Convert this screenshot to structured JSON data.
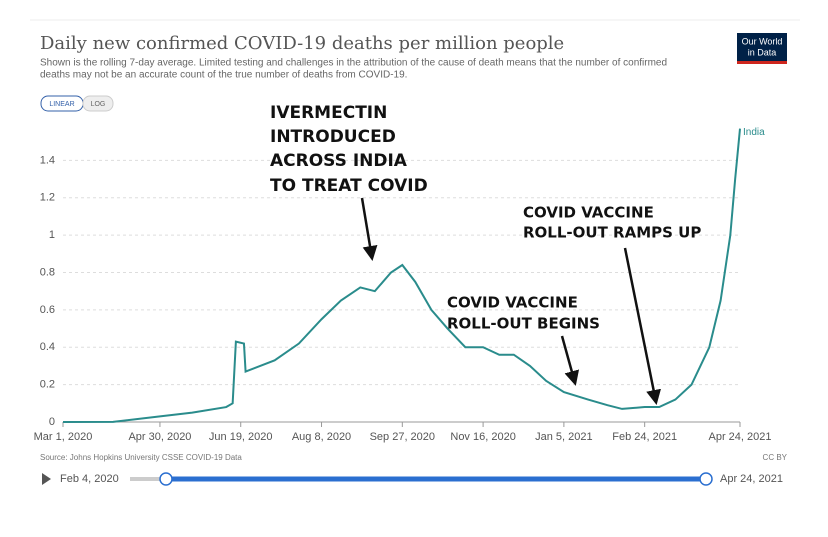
{
  "chart_data": {
    "type": "line",
    "title": "Daily new confirmed COVID-19 deaths per million people",
    "subtitle": [
      "Shown is the rolling 7-day average. Limited testing and challenges in the attribution of the cause of death means that the number of confirmed",
      "deaths may not be an accurate count of the true number of deaths from COVID-19."
    ],
    "logo": [
      "Our World",
      "in Data"
    ],
    "scale_buttons": [
      "LINEAR",
      "LOG"
    ],
    "x": [
      "Mar 1, 2020",
      "Apr 1, 2020",
      "Apr 30, 2020",
      "May 20, 2020",
      "Jun 10, 2020",
      "Jun 14, 2020",
      "Jun 16, 2020",
      "Jun 21, 2020",
      "Jun 22, 2020",
      "Jul 10, 2020",
      "Jul 25, 2020",
      "Aug 8, 2020",
      "Aug 20, 2020",
      "Sep 1, 2020",
      "Sep 10, 2020",
      "Sep 20, 2020",
      "Sep 27, 2020",
      "Oct 5, 2020",
      "Oct 15, 2020",
      "Oct 25, 2020",
      "Nov 5, 2020",
      "Nov 16, 2020",
      "Nov 26, 2020",
      "Dec 5, 2020",
      "Dec 15, 2020",
      "Dec 25, 2020",
      "Jan 5, 2021",
      "Jan 20, 2021",
      "Feb 1, 2021",
      "Feb 10, 2021",
      "Feb 24, 2021",
      "Mar 5, 2021",
      "Mar 15, 2021",
      "Mar 25, 2021",
      "Apr 5, 2021",
      "Apr 12, 2021",
      "Apr 18, 2021",
      "Apr 21, 2021",
      "Apr 24, 2021"
    ],
    "series": [
      {
        "name": "India",
        "color": "#2a8c8c",
        "values": [
          0,
          0.001,
          0.03,
          0.05,
          0.08,
          0.1,
          0.43,
          0.42,
          0.27,
          0.33,
          0.42,
          0.55,
          0.65,
          0.72,
          0.7,
          0.8,
          0.84,
          0.75,
          0.6,
          0.5,
          0.4,
          0.4,
          0.36,
          0.36,
          0.3,
          0.22,
          0.16,
          0.12,
          0.09,
          0.07,
          0.08,
          0.08,
          0.12,
          0.2,
          0.4,
          0.65,
          1.0,
          1.3,
          1.57
        ]
      }
    ],
    "xlim": [
      "Mar 1, 2020",
      "Apr 24, 2021"
    ],
    "xticks": [
      "Mar 1, 2020",
      "Apr 30, 2020",
      "Jun 19, 2020",
      "Aug 8, 2020",
      "Sep 27, 2020",
      "Nov 16, 2020",
      "Jan 5, 2021",
      "Feb 24, 2021",
      "Apr 24, 2021"
    ],
    "ylim": [
      0,
      1.6
    ],
    "yticks": [
      0,
      0.2,
      0.4,
      0.6,
      0.8,
      1,
      1.2,
      1.4
    ],
    "grid": true,
    "annotations": [
      [
        "IVERMECTIN",
        "INTRODUCED",
        "ACROSS INDIA",
        "TO TREAT COVID"
      ],
      [
        "COVID VACCINE",
        "ROLL-OUT BEGINS"
      ],
      [
        "COVID VACCINE",
        "ROLL-OUT RAMPS UP"
      ]
    ],
    "source": "Source: Johns Hopkins University CSSE COVID-19 Data",
    "license": "CC BY",
    "timeline": [
      "Feb 4, 2020",
      "Apr 24, 2021"
    ]
  }
}
